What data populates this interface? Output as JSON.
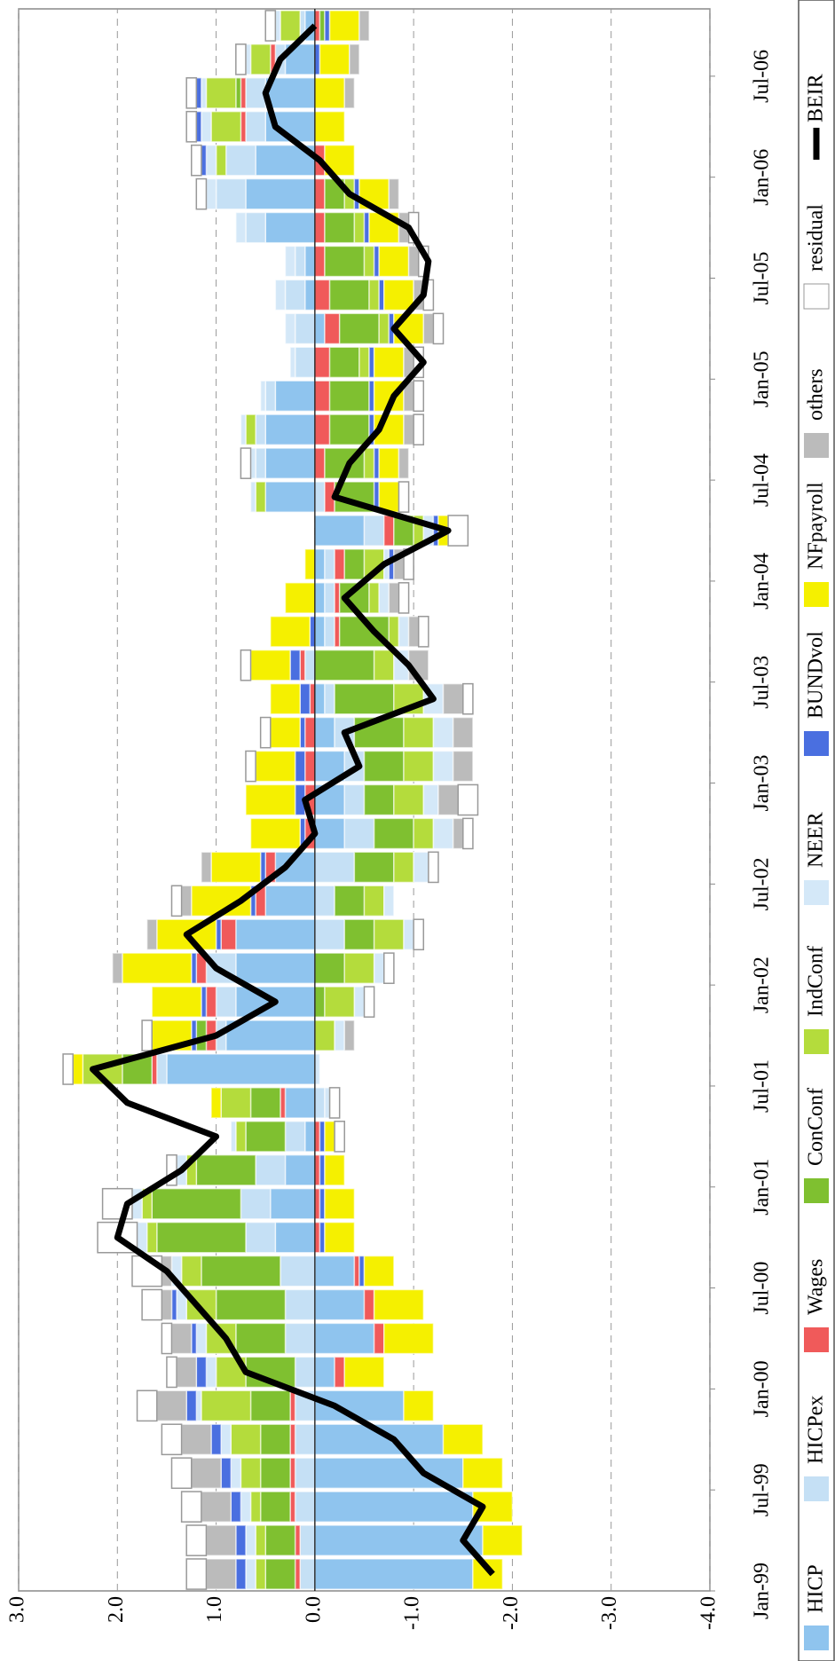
{
  "chart_data": {
    "type": "bar",
    "stacked": true,
    "grid": true,
    "legend": "bottom",
    "categories": [
      "Jan-99",
      null,
      null,
      "Jul-99",
      null,
      null,
      "Jan-00",
      null,
      null,
      "Jul-00",
      null,
      null,
      "Jan-01",
      null,
      null,
      "Jul-01",
      null,
      null,
      "Jan-02",
      null,
      null,
      "Jul-02",
      null,
      null,
      "Jan-03",
      null,
      null,
      "Jul-03",
      null,
      null,
      "Jan-04",
      null,
      null,
      "Jul-04",
      null,
      null,
      "Jan-05",
      null,
      null,
      "Jul-05",
      null,
      null,
      "Jan-06",
      null,
      null,
      "Jul-06",
      null
    ],
    "ylim": [
      -4,
      3
    ],
    "yticks": [
      {
        "value": 3,
        "label": "3.0"
      },
      {
        "value": 2,
        "label": "2.0"
      },
      {
        "value": 1,
        "label": "1.0"
      },
      {
        "value": 0,
        "label": "0.0"
      },
      {
        "value": -1,
        "label": "-1.0"
      },
      {
        "value": -2,
        "label": "-2.0"
      },
      {
        "value": -3,
        "label": "-3.0"
      },
      {
        "value": -4,
        "label": "-4.0"
      }
    ],
    "series": [
      {
        "name": "HICP",
        "color": "#8fc4ee",
        "values": [
          -1.6,
          -1.7,
          -1.6,
          -1.5,
          -1.3,
          -0.9,
          -0.2,
          -0.6,
          -0.5,
          -0.4,
          0.4,
          0.45,
          0.3,
          0.1,
          0.3,
          1.5,
          0.9,
          0.8,
          0.8,
          0.8,
          0.5,
          0.4,
          -0.3,
          -0.3,
          -0.3,
          -0.2,
          -0.1,
          0.0,
          -0.1,
          -0.1,
          -0.1,
          -0.5,
          0.5,
          0.5,
          0.5,
          0.4,
          0.0,
          -0.1,
          0.1,
          0.1,
          0.5,
          0.7,
          0.6,
          0.5,
          0.5,
          0.3,
          0.1
        ]
      },
      {
        "name": "HICPex",
        "color": "#c5e0f5",
        "values": [
          0.15,
          0.15,
          0.2,
          0.2,
          0.2,
          0.2,
          0.2,
          0.3,
          0.3,
          0.35,
          0.3,
          0.3,
          0.3,
          0.2,
          -0.1,
          0.1,
          0.1,
          0.2,
          0.3,
          -0.3,
          -0.2,
          -0.4,
          -0.3,
          -0.2,
          -0.2,
          -0.2,
          -0.1,
          0.1,
          -0.1,
          -0.1,
          -0.1,
          -0.2,
          -0.1,
          0.1,
          0.1,
          0.1,
          0.2,
          0.2,
          0.2,
          0.1,
          0.2,
          0.3,
          0.3,
          0.2,
          0.2,
          0.1,
          0.05
        ]
      },
      {
        "name": "Wages",
        "color": "#f05a5a",
        "values": [
          0.05,
          0.05,
          0.05,
          0.05,
          0.05,
          0.05,
          -0.1,
          -0.1,
          -0.1,
          -0.05,
          -0.05,
          -0.05,
          -0.05,
          -0.05,
          0.05,
          0.05,
          0.1,
          0.1,
          0.1,
          0.15,
          0.1,
          0.1,
          0.1,
          0.1,
          0.1,
          0.1,
          0.05,
          0.05,
          -0.05,
          -0.05,
          -0.1,
          -0.1,
          -0.1,
          -0.1,
          -0.15,
          -0.15,
          -0.15,
          -0.15,
          -0.15,
          -0.1,
          -0.1,
          -0.1,
          -0.1,
          0.05,
          0.05,
          0.05,
          -0.05
        ]
      },
      {
        "name": "ConConf",
        "color": "#7fc030",
        "values": [
          0.3,
          0.3,
          0.3,
          0.3,
          0.3,
          0.4,
          0.5,
          0.5,
          0.7,
          0.8,
          0.9,
          0.9,
          0.6,
          0.4,
          0.3,
          0.3,
          0.1,
          -0.1,
          -0.3,
          -0.3,
          -0.3,
          -0.4,
          -0.4,
          -0.3,
          -0.4,
          -0.5,
          -0.6,
          -0.6,
          -0.5,
          -0.3,
          -0.2,
          -0.2,
          -0.4,
          -0.4,
          -0.4,
          -0.4,
          -0.3,
          -0.4,
          -0.4,
          -0.4,
          -0.3,
          -0.2,
          0.0,
          0.0,
          0.05,
          0.0,
          -0.05
        ]
      },
      {
        "name": "IndConf",
        "color": "#b4dc3c",
        "values": [
          0.1,
          0.1,
          0.1,
          0.2,
          0.3,
          0.5,
          0.3,
          0.3,
          0.3,
          0.2,
          0.1,
          0.1,
          0.1,
          0.1,
          0.3,
          0.4,
          -0.2,
          -0.3,
          -0.3,
          -0.3,
          -0.2,
          -0.2,
          -0.2,
          -0.3,
          -0.3,
          -0.3,
          -0.3,
          -0.2,
          -0.1,
          -0.1,
          -0.2,
          -0.1,
          0.1,
          -0.1,
          0.1,
          0.0,
          -0.1,
          -0.1,
          -0.1,
          -0.1,
          -0.1,
          -0.1,
          0.1,
          0.3,
          0.3,
          0.2,
          0.2
        ]
      },
      {
        "name": "NEER",
        "color": "#d4e8f8",
        "values": [
          0.1,
          0.1,
          0.1,
          0.1,
          0.1,
          0.05,
          0.1,
          0.1,
          0.1,
          0.1,
          0.1,
          0.1,
          0.1,
          0.05,
          -0.05,
          -0.05,
          -0.1,
          -0.1,
          -0.1,
          -0.1,
          -0.1,
          -0.15,
          -0.2,
          -0.15,
          -0.2,
          -0.2,
          -0.2,
          -0.15,
          -0.1,
          -0.1,
          -0.05,
          -0.1,
          0.05,
          0.05,
          0.05,
          0.05,
          0.05,
          0.1,
          0.1,
          0.1,
          0.1,
          0.1,
          0.1,
          0.1,
          0.05,
          0.05,
          0.05
        ]
      },
      {
        "name": "BUNDvol",
        "color": "#4a6fe0",
        "values": [
          0.1,
          0.1,
          0.1,
          0.1,
          0.1,
          0.1,
          0.1,
          0.05,
          0.05,
          -0.05,
          -0.05,
          -0.05,
          -0.05,
          -0.05,
          0,
          0,
          0.05,
          0.05,
          0.05,
          0.05,
          0.05,
          0.05,
          0.05,
          0.1,
          0.1,
          0.05,
          0.1,
          0.1,
          0.05,
          0,
          -0.05,
          -0.05,
          -0.05,
          -0.05,
          -0.05,
          -0.05,
          -0.05,
          -0.05,
          -0.05,
          -0.05,
          -0.05,
          -0.05,
          0.05,
          0.05,
          0.05,
          -0.05,
          -0.05
        ]
      },
      {
        "name": "NFpayroll",
        "color": "#f5f000",
        "values": [
          -0.3,
          -0.4,
          -0.4,
          -0.4,
          -0.4,
          -0.3,
          -0.4,
          -0.5,
          -0.5,
          -0.3,
          -0.3,
          -0.3,
          -0.2,
          -0.1,
          0.1,
          0.1,
          0.4,
          0.5,
          0.7,
          0.6,
          0.6,
          0.5,
          0.5,
          0.5,
          0.4,
          0.3,
          0.3,
          0.4,
          0.4,
          0.3,
          0.1,
          -0.1,
          -0.2,
          -0.2,
          -0.3,
          -0.3,
          -0.3,
          -0.3,
          -0.3,
          -0.3,
          -0.3,
          -0.3,
          -0.3,
          -0.3,
          -0.3,
          -0.3,
          -0.3
        ]
      },
      {
        "name": "others",
        "color": "#bbbbbb",
        "values": [
          0.3,
          0.3,
          0.3,
          0.3,
          0.3,
          0.3,
          0.2,
          0.2,
          0.1,
          0.1,
          0.0,
          0.0,
          0.0,
          0.0,
          0.0,
          0.0,
          -0.1,
          0.0,
          0.1,
          0.1,
          0.1,
          0.1,
          -0.1,
          -0.2,
          -0.2,
          -0.2,
          -0.2,
          -0.2,
          -0.1,
          -0.1,
          -0.1,
          0.0,
          0.0,
          -0.1,
          -0.1,
          -0.1,
          -0.1,
          -0.1,
          -0.1,
          -0.1,
          -0.1,
          -0.1,
          0.0,
          0.0,
          -0.1,
          -0.1,
          -0.1
        ]
      },
      {
        "name": "residual",
        "color": "#ffffff",
        "values": [
          0.2,
          0.2,
          0.2,
          0.2,
          0.2,
          0.2,
          0.1,
          0.1,
          0.2,
          0.3,
          0.4,
          0.3,
          0.1,
          -0.1,
          -0.1,
          0.1,
          0.1,
          -0.1,
          -0.1,
          -0.1,
          0.1,
          -0.1,
          -0.1,
          -0.2,
          0.1,
          0.1,
          -0.1,
          0.1,
          -0.1,
          -0.1,
          -0.1,
          -0.2,
          -0.1,
          0.1,
          -0.1,
          -0.1,
          -0.1,
          -0.1,
          -0.1,
          -0.1,
          -0.1,
          0.1,
          0.1,
          0.1,
          0.1,
          0.1,
          0.1
        ]
      },
      {
        "name": "BEIR",
        "type": "line",
        "color": "#000000",
        "values": [
          -1.8,
          -1.5,
          -1.7,
          -1.1,
          -0.8,
          -0.2,
          0.7,
          0.9,
          1.2,
          1.5,
          2.0,
          1.9,
          1.35,
          1.0,
          1.9,
          2.25,
          1.0,
          0.4,
          1.0,
          1.3,
          0.75,
          0.3,
          0.0,
          0.1,
          -0.45,
          -0.3,
          -1.2,
          -0.95,
          -0.6,
          -0.3,
          -0.7,
          -1.35,
          -0.2,
          -0.35,
          -0.65,
          -0.8,
          -1.1,
          -0.8,
          -1.1,
          -1.15,
          -0.95,
          -0.35,
          -0.05,
          0.4,
          0.5,
          0.35,
          0.0
        ]
      }
    ]
  }
}
